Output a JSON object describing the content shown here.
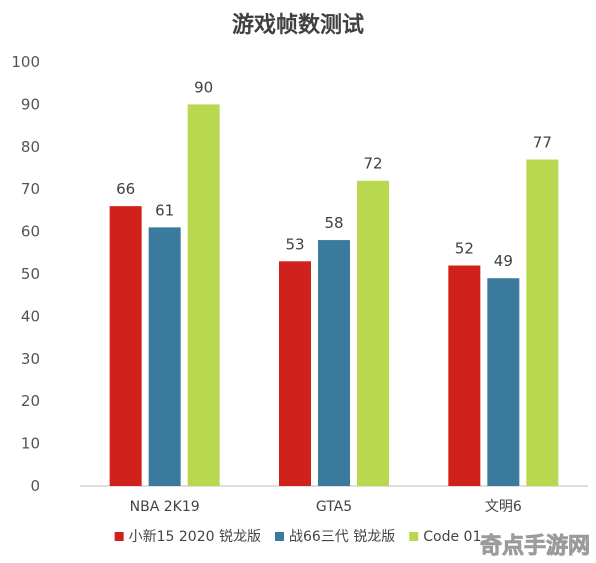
{
  "chart_data": {
    "type": "bar",
    "title": "游戏帧数测试",
    "xlabel": "",
    "ylabel": "",
    "categories": [
      "NBA 2K19",
      "GTA5",
      "文明6"
    ],
    "series": [
      {
        "name": "小新15 2020 锐龙版",
        "values": [
          66,
          53,
          52
        ],
        "color": "#d0211c"
      },
      {
        "name": "战66三代 锐龙版",
        "values": [
          61,
          58,
          49
        ],
        "color": "#3a7a9c"
      },
      {
        "name": "Code 01",
        "values": [
          90,
          72,
          77
        ],
        "color": "#b9d84f"
      }
    ],
    "ylim": [
      0,
      100
    ],
    "yticks": [
      0,
      10,
      20,
      30,
      40,
      50,
      60,
      70,
      80,
      90,
      100
    ],
    "grid": false,
    "legend": "bottom"
  },
  "watermark": {
    "text": "奇点手游网"
  }
}
